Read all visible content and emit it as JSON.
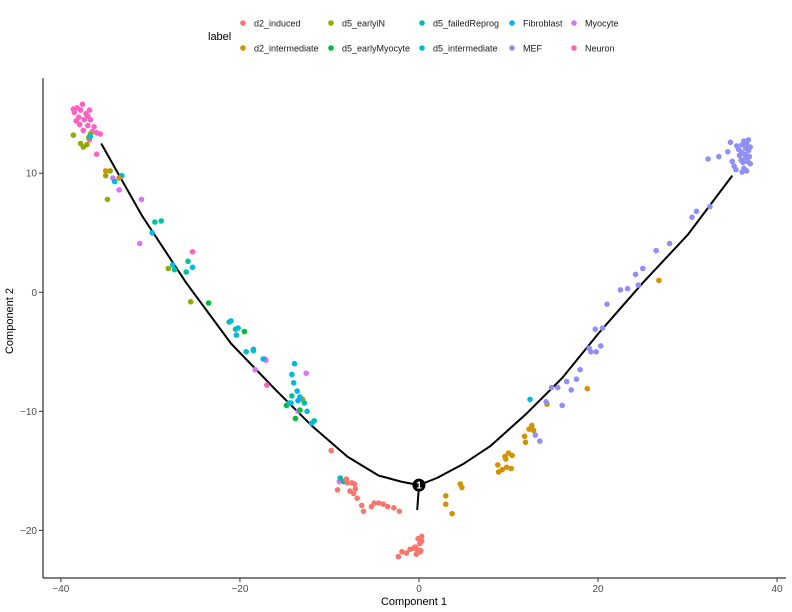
{
  "chart_data": {
    "type": "scatter",
    "title": "",
    "xlabel": "Component 1",
    "ylabel": "Component 2",
    "xlim": [
      -42,
      41
    ],
    "ylim": [
      -24,
      18
    ],
    "xticks": [
      -40,
      -20,
      0,
      20,
      40
    ],
    "yticks": [
      -20,
      -10,
      0,
      10
    ],
    "grid": false,
    "legend": {
      "title": "label",
      "position": "top",
      "entries": [
        {
          "label": "d2_induced",
          "color": "#F8766D"
        },
        {
          "label": "d2_intermediate",
          "color": "#D39200"
        },
        {
          "label": "d5_earlyiN",
          "color": "#93AA00"
        },
        {
          "label": "d5_earlyMyocyte",
          "color": "#00BA38"
        },
        {
          "label": "d5_failedReprog",
          "color": "#00C19F"
        },
        {
          "label": "d5_intermediate",
          "color": "#00B9E3"
        },
        {
          "label": "Fibroblast",
          "color": "#00ADFA"
        },
        {
          "label": "MEF",
          "color": "#8F8FF5"
        },
        {
          "label": "Myocyte",
          "color": "#DB72FB"
        },
        {
          "label": "Neuron",
          "color": "#FF61C3"
        }
      ]
    },
    "trajectory": {
      "left_branch": [
        [
          -35.5,
          12.5
        ],
        [
          -31,
          6.5
        ],
        [
          -26,
          0.8
        ],
        [
          -21,
          -4.3
        ],
        [
          -16,
          -8.2
        ],
        [
          -12,
          -11.2
        ],
        [
          -8,
          -13.8
        ],
        [
          -4.5,
          -15.4
        ],
        [
          -2,
          -15.9
        ],
        [
          0,
          -16.2
        ]
      ],
      "right_branch": [
        [
          0,
          -16.2
        ],
        [
          2,
          -15.6
        ],
        [
          5,
          -14.4
        ],
        [
          8,
          -12.9
        ],
        [
          12,
          -10.2
        ],
        [
          16,
          -7.2
        ],
        [
          20,
          -3.5
        ],
        [
          25,
          0.8
        ],
        [
          30,
          4.8
        ],
        [
          35,
          9.8
        ]
      ],
      "stem": [
        [
          0,
          -16.2
        ],
        [
          -0.2,
          -18.3
        ]
      ],
      "branch_point": {
        "x": 0,
        "y": -16.2,
        "label": "1"
      }
    },
    "series": [
      {
        "name": "Neuron",
        "color": "#FF61C3",
        "points": [
          [
            -38.5,
            15.1
          ],
          [
            -38.2,
            15.5
          ],
          [
            -38.0,
            14.7
          ],
          [
            -37.8,
            15.3
          ],
          [
            -37.6,
            15.8
          ],
          [
            -37.4,
            14.5
          ],
          [
            -37.2,
            15.0
          ],
          [
            -37.0,
            14.8
          ],
          [
            -36.8,
            15.3
          ],
          [
            -38.3,
            14.4
          ],
          [
            -37.9,
            14.1
          ],
          [
            -37.0,
            14.0
          ],
          [
            -36.7,
            14.5
          ],
          [
            -36.3,
            13.9
          ],
          [
            -38.6,
            15.4
          ],
          [
            -37.5,
            13.6
          ],
          [
            -36.5,
            13.5
          ],
          [
            -36.0,
            13.4
          ],
          [
            -35.6,
            13.3
          ],
          [
            -36.8,
            12.8
          ],
          [
            -36.0,
            11.6
          ],
          [
            -25.3,
            3.4
          ],
          [
            -17.1,
            -5.7
          ],
          [
            -17.0,
            -7.8
          ]
        ]
      },
      {
        "name": "Myocyte",
        "color": "#DB72FB",
        "points": [
          [
            -34.2,
            9.6
          ],
          [
            -33.5,
            8.6
          ],
          [
            -31.0,
            7.8
          ],
          [
            -31.2,
            4.1
          ],
          [
            -17.2,
            -5.6
          ],
          [
            -18.3,
            -6.5
          ],
          [
            -12.6,
            -6.8
          ],
          [
            -8.9,
            -15.9
          ],
          [
            -13.5,
            -10.0
          ]
        ]
      },
      {
        "name": "d5_earlyiN",
        "color": "#93AA00",
        "points": [
          [
            -38.6,
            13.2
          ],
          [
            -37.8,
            12.5
          ],
          [
            -37.5,
            12.2
          ],
          [
            -37.1,
            12.4
          ],
          [
            -36.9,
            13.0
          ],
          [
            -36.7,
            13.3
          ],
          [
            -35.0,
            9.8
          ],
          [
            -34.5,
            10.2
          ],
          [
            -34.8,
            7.8
          ],
          [
            -28.0,
            2.0
          ],
          [
            -25.5,
            -0.8
          ],
          [
            -13.0,
            -9.0
          ]
        ]
      },
      {
        "name": "d5_earlyMyocyte",
        "color": "#00BA38",
        "points": [
          [
            -23.5,
            -0.9
          ],
          [
            -19.5,
            -3.3
          ],
          [
            -14.8,
            -9.5
          ],
          [
            -13.8,
            -10.6
          ],
          [
            -13.3,
            -9.9
          ]
        ]
      },
      {
        "name": "d5_failedReprog",
        "color": "#00C19F",
        "points": [
          [
            -29.5,
            5.9
          ],
          [
            -28.8,
            6.0
          ],
          [
            -27.3,
            1.9
          ],
          [
            -26.0,
            1.7
          ],
          [
            -25.8,
            2.6
          ],
          [
            -21.2,
            -2.5
          ],
          [
            -20.5,
            -3.1
          ],
          [
            -18.5,
            -4.8
          ],
          [
            -14.2,
            -8.7
          ],
          [
            -14.5,
            -9.3
          ],
          [
            -12.8,
            -9.3
          ],
          [
            -11.7,
            -10.8
          ],
          [
            -8.8,
            -15.6
          ],
          [
            -8.4,
            -15.9
          ]
        ]
      },
      {
        "name": "d5_intermediate",
        "color": "#00B9E3",
        "points": [
          [
            -36.7,
            13.1
          ],
          [
            -34.0,
            9.3
          ],
          [
            -33.2,
            9.8
          ],
          [
            -29.8,
            5.0
          ],
          [
            -27.5,
            2.3
          ],
          [
            -25.3,
            2.1
          ],
          [
            -21.0,
            -2.4
          ],
          [
            -20.4,
            -3.6
          ],
          [
            -20.2,
            -3.0
          ],
          [
            -19.3,
            -5.0
          ],
          [
            -18.5,
            -4.9
          ],
          [
            -17.4,
            -5.6
          ],
          [
            -14.2,
            -6.9
          ],
          [
            -13.9,
            -6.0
          ],
          [
            -14.0,
            -7.6
          ],
          [
            -13.6,
            -8.3
          ],
          [
            -13.3,
            -8.8
          ],
          [
            -14.3,
            -9.3
          ],
          [
            -12.5,
            -10.0
          ],
          [
            -12.0,
            -11.0
          ],
          [
            12.4,
            -9.0
          ]
        ]
      },
      {
        "name": "d2_intermediate",
        "color": "#D39200",
        "points": [
          [
            -35.0,
            10.2
          ],
          [
            -33.5,
            9.6
          ],
          [
            3.0,
            -17.1
          ],
          [
            3.0,
            -17.8
          ],
          [
            3.7,
            -18.6
          ],
          [
            4.6,
            -16.1
          ],
          [
            4.8,
            -16.4
          ],
          [
            8.8,
            -14.5
          ],
          [
            8.9,
            -15.1
          ],
          [
            9.3,
            -14.9
          ],
          [
            9.8,
            -14.7
          ],
          [
            10.3,
            -14.8
          ],
          [
            9.7,
            -14.0
          ],
          [
            10.0,
            -13.5
          ],
          [
            10.4,
            -13.7
          ],
          [
            9.6,
            -13.8
          ],
          [
            11.9,
            -12.6
          ],
          [
            11.8,
            -12.1
          ],
          [
            12.3,
            -11.5
          ],
          [
            12.6,
            -11.2
          ],
          [
            12.8,
            -11.6
          ],
          [
            14.3,
            -9.4
          ],
          [
            18.8,
            -8.1
          ],
          [
            26.8,
            1.0
          ]
        ]
      },
      {
        "name": "d2_induced",
        "color": "#F8766D",
        "points": [
          [
            -9.8,
            -13.3
          ],
          [
            -8.1,
            -15.7
          ],
          [
            -8.0,
            -16.0
          ],
          [
            -9.1,
            -16.6
          ],
          [
            -7.7,
            -16.7
          ],
          [
            -7.5,
            -16.0
          ],
          [
            -7.2,
            -16.1
          ],
          [
            -7.3,
            -16.9
          ],
          [
            -7.1,
            -16.5
          ],
          [
            -6.9,
            -17.3
          ],
          [
            -6.4,
            -17.9
          ],
          [
            -6.2,
            -18.4
          ],
          [
            -5.3,
            -18.0
          ],
          [
            -5.0,
            -17.7
          ],
          [
            -4.5,
            -17.7
          ],
          [
            -4.0,
            -17.8
          ],
          [
            -3.5,
            -18.0
          ],
          [
            -2.8,
            -18.1
          ],
          [
            -2.2,
            -18.4
          ],
          [
            0.3,
            -20.5
          ],
          [
            -0.1,
            -20.7
          ],
          [
            0.3,
            -20.9
          ],
          [
            0.1,
            -21.1
          ],
          [
            -0.4,
            -21.4
          ],
          [
            -0.2,
            -21.6
          ],
          [
            0.2,
            -21.7
          ],
          [
            -0.6,
            -21.5
          ],
          [
            0.1,
            -21.8
          ],
          [
            -0.3,
            -22.0
          ],
          [
            -1.0,
            -21.6
          ],
          [
            -1.4,
            -21.9
          ],
          [
            -2.3,
            -22.2
          ],
          [
            -1.9,
            -21.8
          ]
        ]
      },
      {
        "name": "Fibroblast",
        "color": "#00ADFA",
        "points": [
          [
            -13.5,
            -9.1
          ]
        ]
      },
      {
        "name": "MEF",
        "color": "#8F8FF5",
        "points": [
          [
            33.5,
            11.4
          ],
          [
            32.3,
            11.2
          ],
          [
            34.5,
            11.8
          ],
          [
            35.0,
            11.0
          ],
          [
            35.2,
            10.6
          ],
          [
            35.5,
            12.3
          ],
          [
            35.8,
            11.5
          ],
          [
            36.0,
            11.1
          ],
          [
            36.0,
            11.8
          ],
          [
            36.1,
            12.4
          ],
          [
            36.2,
            10.9
          ],
          [
            36.3,
            10.4
          ],
          [
            36.3,
            12.7
          ],
          [
            36.4,
            11.6
          ],
          [
            36.5,
            11.3
          ],
          [
            36.5,
            12.1
          ],
          [
            36.6,
            10.2
          ],
          [
            36.6,
            12.5
          ],
          [
            36.7,
            11.0
          ],
          [
            36.8,
            11.9
          ],
          [
            36.8,
            12.8
          ],
          [
            36.9,
            11.4
          ],
          [
            37.0,
            12.2
          ],
          [
            37.0,
            10.8
          ],
          [
            35.7,
            12.0
          ],
          [
            35.4,
            10.3
          ],
          [
            36.1,
            10.1
          ],
          [
            34.8,
            12.6
          ],
          [
            32.5,
            7.2
          ],
          [
            31.0,
            6.8
          ],
          [
            30.5,
            6.3
          ],
          [
            28.0,
            4.1
          ],
          [
            26.5,
            3.5
          ],
          [
            25.0,
            2.0
          ],
          [
            24.2,
            1.5
          ],
          [
            23.3,
            0.3
          ],
          [
            24.5,
            0.6
          ],
          [
            22.5,
            0.2
          ],
          [
            21.0,
            -1.0
          ],
          [
            20.5,
            -3.0
          ],
          [
            19.7,
            -3.1
          ],
          [
            20.3,
            -4.5
          ],
          [
            19.8,
            -5.0
          ],
          [
            19.0,
            -4.7
          ],
          [
            19.2,
            -5.0
          ],
          [
            18.0,
            -6.5
          ],
          [
            17.6,
            -7.3
          ],
          [
            16.5,
            -7.5
          ],
          [
            17.0,
            -8.2
          ],
          [
            15.5,
            -8.0
          ],
          [
            14.8,
            -8.0
          ],
          [
            14.2,
            -9.2
          ],
          [
            16.0,
            -9.5
          ],
          [
            13.0,
            -12.0
          ],
          [
            13.5,
            -12.5
          ]
        ]
      }
    ]
  }
}
